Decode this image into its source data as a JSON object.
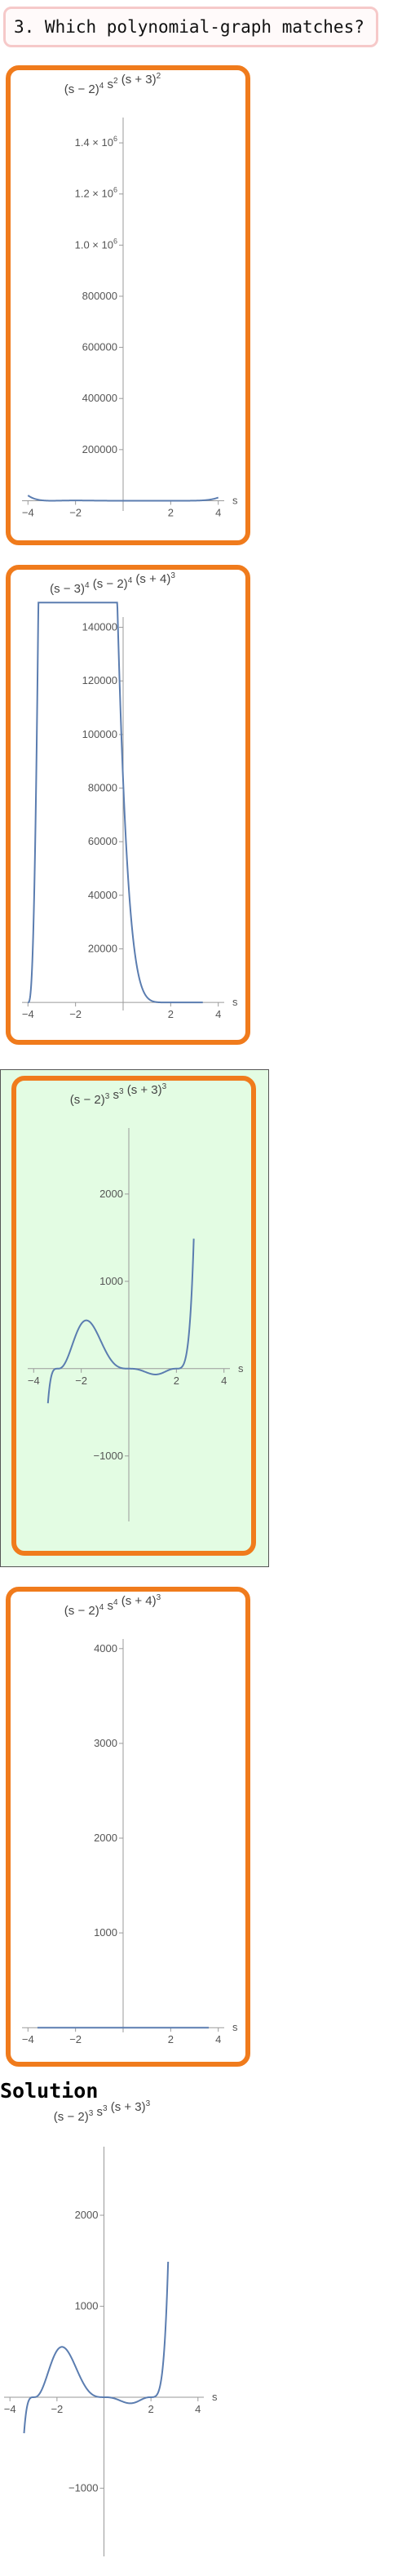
{
  "question": {
    "text": "3. Which polynomial-graph matches?"
  },
  "solution": {
    "heading": "Solution"
  },
  "colors": {
    "card_border": "#f07b1c",
    "selected_background": "#e3fce3",
    "curve": "#5b7db0",
    "question_border": "#f6c9c9"
  },
  "options": [
    {
      "id": "a",
      "selected": false,
      "title": {
        "parts": [
          [
            "(s − 2)",
            ""
          ],
          [
            "4",
            "sup"
          ],
          [
            " s",
            ""
          ],
          [
            "2",
            "sup"
          ],
          [
            " (s + 3)",
            ""
          ],
          [
            "2",
            "sup"
          ]
        ]
      },
      "chart_data": {
        "type": "line",
        "xlabel": "s",
        "xlim": [
          -4.25,
          4.25
        ],
        "ylim": [
          -40000,
          1480000
        ],
        "x_ticks": [
          {
            "v": -4,
            "label": "−4"
          },
          {
            "v": -2,
            "label": "−2"
          },
          {
            "v": 2,
            "label": "2"
          },
          {
            "v": 4,
            "label": "4"
          }
        ],
        "y_ticks": [
          {
            "v": 200000,
            "label": "200000"
          },
          {
            "v": 400000,
            "label": "400000"
          },
          {
            "v": 600000,
            "label": "600000"
          },
          {
            "v": 800000,
            "label": "800000"
          },
          {
            "v": 1000000,
            "label": "1.0 × 10",
            "exp": "6"
          },
          {
            "v": 1200000,
            "label": "1.2 × 10",
            "exp": "6"
          },
          {
            "v": 1400000,
            "label": "1.4 × 10",
            "exp": "6"
          }
        ],
        "series": [
          {
            "roots": [
              [
                2,
                4
              ],
              [
                0,
                2
              ],
              [
                -3,
                2
              ]
            ],
            "x_range": [
              -4,
              4
            ]
          }
        ]
      }
    },
    {
      "id": "b",
      "selected": false,
      "title": {
        "parts": [
          [
            "(s − 3)",
            ""
          ],
          [
            "4",
            "sup"
          ],
          [
            " (s − 2)",
            ""
          ],
          [
            "4",
            "sup"
          ],
          [
            " (s + 4)",
            ""
          ],
          [
            "3",
            "sup"
          ]
        ]
      },
      "chart_data": {
        "type": "line",
        "xlabel": "s",
        "xlim": [
          -4.25,
          4.25
        ],
        "ylim": [
          -3000,
          142000
        ],
        "x_ticks": [
          {
            "v": -4,
            "label": "−4"
          },
          {
            "v": -2,
            "label": "−2"
          },
          {
            "v": 2,
            "label": "2"
          },
          {
            "v": 4,
            "label": "4"
          }
        ],
        "y_ticks": [
          {
            "v": 20000,
            "label": "20000"
          },
          {
            "v": 40000,
            "label": "40000"
          },
          {
            "v": 60000,
            "label": "60000"
          },
          {
            "v": 80000,
            "label": "80000"
          },
          {
            "v": 100000,
            "label": "100000"
          },
          {
            "v": 120000,
            "label": "120000"
          },
          {
            "v": 140000,
            "label": "140000"
          }
        ],
        "series": [
          {
            "roots": [
              [
                3,
                4
              ],
              [
                2,
                4
              ],
              [
                -4,
                3
              ]
            ],
            "x_range": [
              -4,
              3.35
            ]
          }
        ]
      }
    },
    {
      "id": "c",
      "selected": true,
      "title": {
        "parts": [
          [
            "(s − 2)",
            ""
          ],
          [
            "3",
            "sup"
          ],
          [
            " s",
            ""
          ],
          [
            "3",
            "sup"
          ],
          [
            " (s + 3)",
            ""
          ],
          [
            "3",
            "sup"
          ]
        ]
      },
      "chart_data": {
        "type": "line",
        "xlabel": "s",
        "xlim": [
          -4.25,
          4.25
        ],
        "ylim": [
          -1750,
          2700
        ],
        "x_ticks": [
          {
            "v": -4,
            "label": "−4"
          },
          {
            "v": -2,
            "label": "−2"
          },
          {
            "v": 2,
            "label": "2"
          },
          {
            "v": 4,
            "label": "4"
          }
        ],
        "y_ticks": [
          {
            "v": -1000,
            "label": "−1000"
          },
          {
            "v": 1000,
            "label": "1000"
          },
          {
            "v": 2000,
            "label": "2000"
          }
        ],
        "series": [
          {
            "roots": [
              [
                2,
                3
              ],
              [
                0,
                3
              ],
              [
                -3,
                3
              ]
            ],
            "x_range": [
              -3.4,
              2.73
            ]
          }
        ]
      }
    },
    {
      "id": "d",
      "selected": false,
      "title": {
        "parts": [
          [
            "(s − 2)",
            ""
          ],
          [
            "4",
            "sup"
          ],
          [
            " s",
            ""
          ],
          [
            "4",
            "sup"
          ],
          [
            " (s + 4)",
            ""
          ],
          [
            "3",
            "sup"
          ]
        ]
      },
      "chart_data": {
        "type": "line",
        "xlabel": "s",
        "xlim": [
          -4.25,
          4.25
        ],
        "ylim": [
          -50,
          4050
        ],
        "x_ticks": [
          {
            "v": -4,
            "label": "−4"
          },
          {
            "v": -2,
            "label": "−2"
          },
          {
            "v": 2,
            "label": "2"
          },
          {
            "v": 4,
            "label": "4"
          }
        ],
        "y_ticks": [
          {
            "v": 1000,
            "label": "1000"
          },
          {
            "v": 2000,
            "label": "2000"
          },
          {
            "v": 3000,
            "label": "3000"
          },
          {
            "v": 4000,
            "label": "4000"
          }
        ],
        "series": [
          {
            "roots": [
              [
                2,
                4
              ],
              [
                0,
                4
              ],
              [
                -4,
                3
              ]
            ],
            "x_range": [
              -3.6,
              3.6
            ],
            "scale": 4.6e-08
          }
        ]
      }
    }
  ],
  "solution_plot": {
    "title": {
      "parts": [
        [
          "(s − 2)",
          ""
        ],
        [
          "3",
          "sup"
        ],
        [
          " s",
          ""
        ],
        [
          "3",
          "sup"
        ],
        [
          " (s + 3)",
          ""
        ],
        [
          "3",
          "sup"
        ]
      ]
    },
    "chart_data": {
      "type": "line",
      "xlabel": "s",
      "xlim": [
        -4.25,
        4.25
      ],
      "ylim": [
        -1750,
        2700
      ],
      "x_ticks": [
        {
          "v": -4,
          "label": "−4"
        },
        {
          "v": -2,
          "label": "−2"
        },
        {
          "v": 2,
          "label": "2"
        },
        {
          "v": 4,
          "label": "4"
        }
      ],
      "y_ticks": [
        {
          "v": -1000,
          "label": "−1000"
        },
        {
          "v": 1000,
          "label": "1000"
        },
        {
          "v": 2000,
          "label": "2000"
        }
      ],
      "series": [
        {
          "roots": [
            [
              2,
              3
            ],
            [
              0,
              3
            ],
            [
              -3,
              3
            ]
          ],
          "x_range": [
            -3.4,
            2.73
          ]
        }
      ]
    }
  }
}
